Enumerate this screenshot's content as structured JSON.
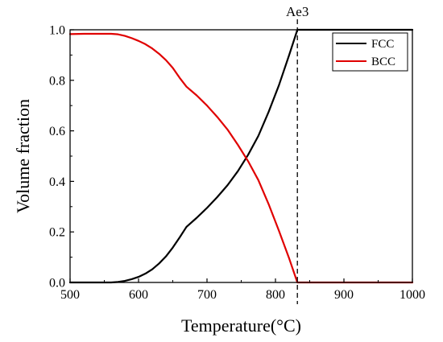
{
  "chart_data": {
    "type": "line",
    "xlabel": "Temperature(°C)",
    "ylabel": "Volume fraction",
    "xlim": [
      500,
      1000
    ],
    "ylim": [
      0,
      1.0
    ],
    "xticks": [
      500,
      600,
      700,
      800,
      900,
      1000
    ],
    "yticks": [
      0.0,
      0.2,
      0.4,
      0.6,
      0.8,
      1.0
    ],
    "xtick_labels": [
      "500",
      "600",
      "700",
      "800",
      "900",
      "1000"
    ],
    "ytick_labels": [
      "0.0",
      "0.2",
      "0.4",
      "0.6",
      "0.8",
      "1.0"
    ],
    "grid": false,
    "legend_position": "top-right",
    "annotation": {
      "label": "Ae3",
      "x": 832,
      "style": "dashed vertical line"
    },
    "series": [
      {
        "name": "FCC",
        "color": "#000000",
        "x": [
          500,
          560,
          570,
          580,
          590,
          600,
          610,
          620,
          630,
          640,
          650,
          660,
          670,
          685,
          700,
          715,
          730,
          745,
          760,
          775,
          790,
          805,
          820,
          832,
          850,
          900,
          950,
          1000
        ],
        "y": [
          0.0,
          0.0,
          0.002,
          0.006,
          0.013,
          0.022,
          0.035,
          0.052,
          0.075,
          0.103,
          0.138,
          0.178,
          0.22,
          0.256,
          0.295,
          0.338,
          0.385,
          0.44,
          0.505,
          0.58,
          0.675,
          0.78,
          0.9,
          1.0,
          1.0,
          1.0,
          1.0,
          1.0
        ]
      },
      {
        "name": "BCC",
        "color": "#e00000",
        "x": [
          500,
          520,
          540,
          560,
          570,
          580,
          590,
          600,
          610,
          620,
          630,
          640,
          650,
          660,
          670,
          685,
          700,
          715,
          730,
          745,
          760,
          775,
          790,
          805,
          820,
          832,
          850,
          900,
          950,
          1000
        ],
        "y": [
          0.983,
          0.984,
          0.984,
          0.984,
          0.982,
          0.976,
          0.967,
          0.956,
          0.943,
          0.926,
          0.905,
          0.88,
          0.849,
          0.81,
          0.775,
          0.74,
          0.7,
          0.655,
          0.605,
          0.545,
          0.48,
          0.405,
          0.31,
          0.205,
          0.095,
          0.0,
          0.0,
          0.0,
          0.0,
          0.0
        ]
      }
    ]
  }
}
